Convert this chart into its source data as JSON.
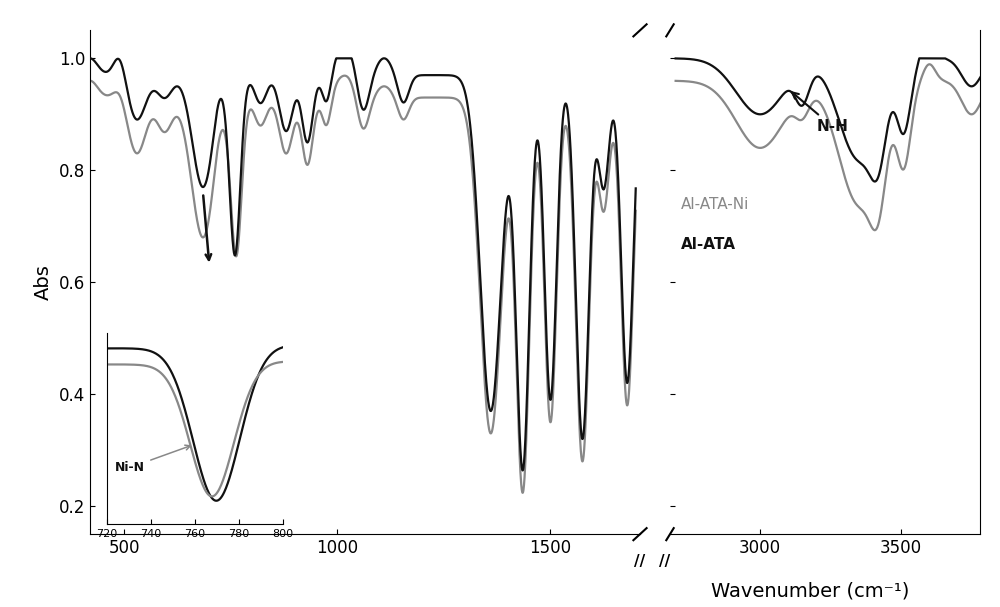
{
  "xlabel": "Wavenumber (cm⁻¹)",
  "ylabel": "Abs",
  "ylim": [
    0.15,
    1.05
  ],
  "background_color": "#ffffff",
  "color_black": "#111111",
  "color_gray": "#888888",
  "label_black": "Al-ATA",
  "label_gray": "Al-ATA-Ni",
  "annotation_nh": "N-H",
  "annotation_nin": "Ni-N"
}
